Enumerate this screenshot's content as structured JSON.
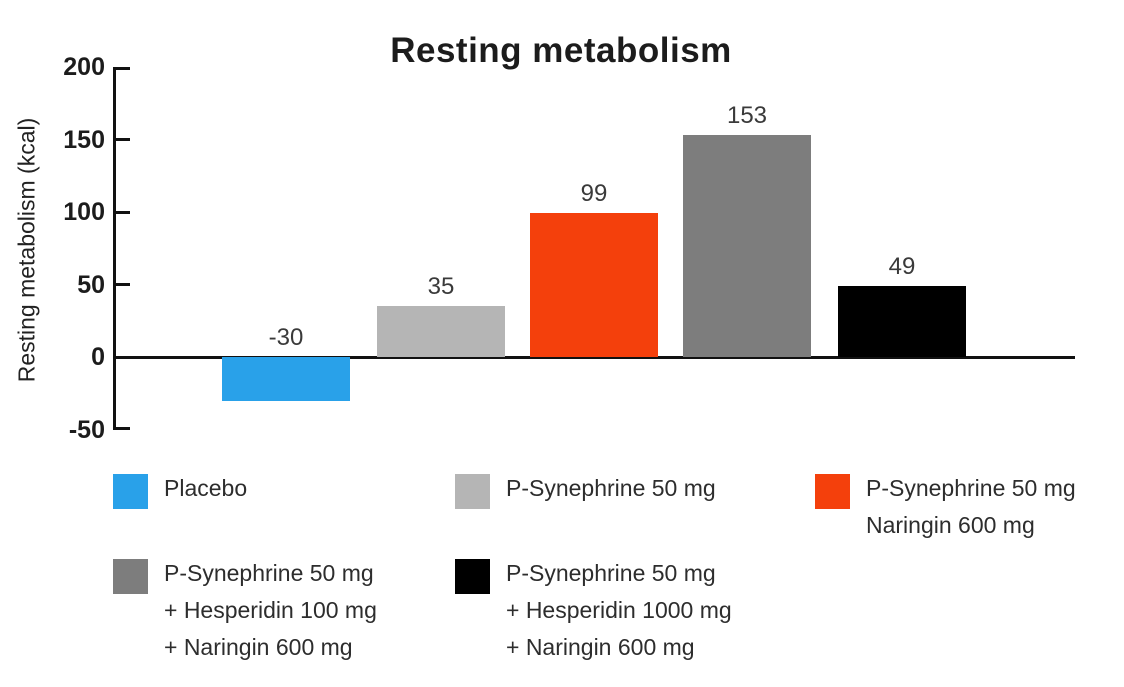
{
  "chart_data": {
    "type": "bar",
    "title": "Resting metabolism",
    "ylabel": "Resting metabolism (kcal)",
    "xlabel": "",
    "categories": [
      "Placebo",
      "P-Synephrine 50 mg",
      "P-Synephrine 50 mg Naringin 600 mg",
      "P-Synephrine 50 mg + Hesperidin 100 mg + Naringin 600 mg",
      "P-Synephrine 50 mg + Hesperidin 1000 mg + Naringin 600 mg"
    ],
    "values": [
      -30,
      35,
      99,
      153,
      49
    ],
    "bar_colors": [
      "#29A1E9",
      "#B5B5B5",
      "#F4400C",
      "#7D7D7D",
      "#000000"
    ],
    "ylim": [
      -50,
      200
    ],
    "yticks": [
      200,
      150,
      100,
      50,
      0,
      -50
    ],
    "grid": false,
    "value_labels_shown": true,
    "legend_position": "bottom"
  },
  "legend": {
    "items": [
      {
        "color": "#29A1E9",
        "lines": [
          "Placebo"
        ]
      },
      {
        "color": "#B5B5B5",
        "lines": [
          "P-Synephrine 50 mg"
        ]
      },
      {
        "color": "#F4400C",
        "lines": [
          "P-Synephrine 50 mg",
          "Naringin 600 mg"
        ]
      },
      {
        "color": "#7D7D7D",
        "lines": [
          "P-Synephrine 50 mg",
          "+ Hesperidin 100 mg",
          "+ Naringin 600 mg"
        ]
      },
      {
        "color": "#000000",
        "lines": [
          "P-Synephrine 50 mg",
          "+ Hesperidin 1000 mg",
          "+ Naringin 600 mg"
        ]
      }
    ]
  },
  "colors": {
    "axis": "#111111",
    "title_text": "#1c1c1c",
    "tick_text": "#1c1c1c",
    "value_text": "#3a3a3a",
    "legend_text": "#2d2d2d",
    "background": "#ffffff"
  }
}
